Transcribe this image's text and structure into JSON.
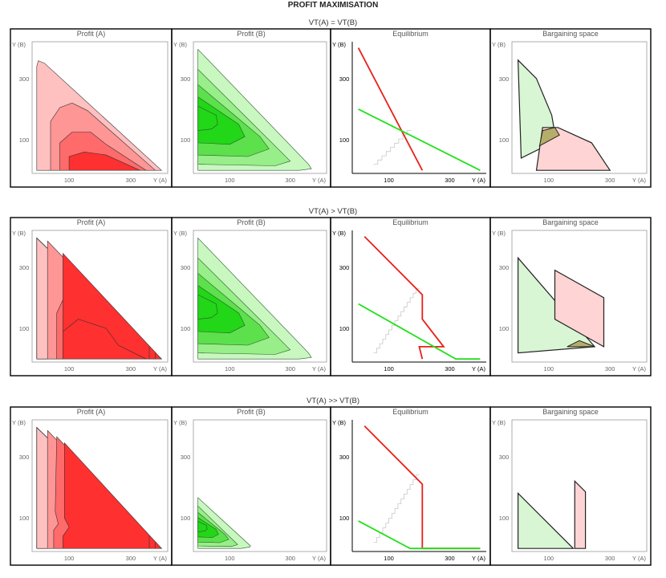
{
  "figure": {
    "title": "PROFIT MAXIMISATION",
    "sections": [
      {
        "id": "eq",
        "title": "VT(A) = VT(B)"
      },
      {
        "id": "gt",
        "title": "VT(A) > VT(B)"
      },
      {
        "id": "gg",
        "title": "VT(A) >> VT(B)"
      }
    ],
    "panel_titles": {
      "profit_a": "Profit (A)",
      "profit_b": "Profit (B)",
      "equilibrium": "Equilibrium",
      "bargaining": "Bargaining space"
    },
    "axes": {
      "x_label": "Y (A)",
      "y_label": "Y (B)",
      "x_ticks": [
        "100",
        "300"
      ],
      "y_ticks": [
        "300",
        "100"
      ]
    }
  },
  "colors": {
    "profit_a_shades": [
      "#ffc0c0",
      "#ff9696",
      "#ff6a6a",
      "#ff3030"
    ],
    "profit_b_shades": [
      "#c8f7c0",
      "#98ee88",
      "#5ce04c",
      "#22d618"
    ],
    "line_a": "#e8201a",
    "line_b": "#22e01a",
    "overlap": "#b5ad6a",
    "bargain_a": "#ffd4d4",
    "bargain_b": "#d8f6d4",
    "path": "#c8c8c8"
  }
}
